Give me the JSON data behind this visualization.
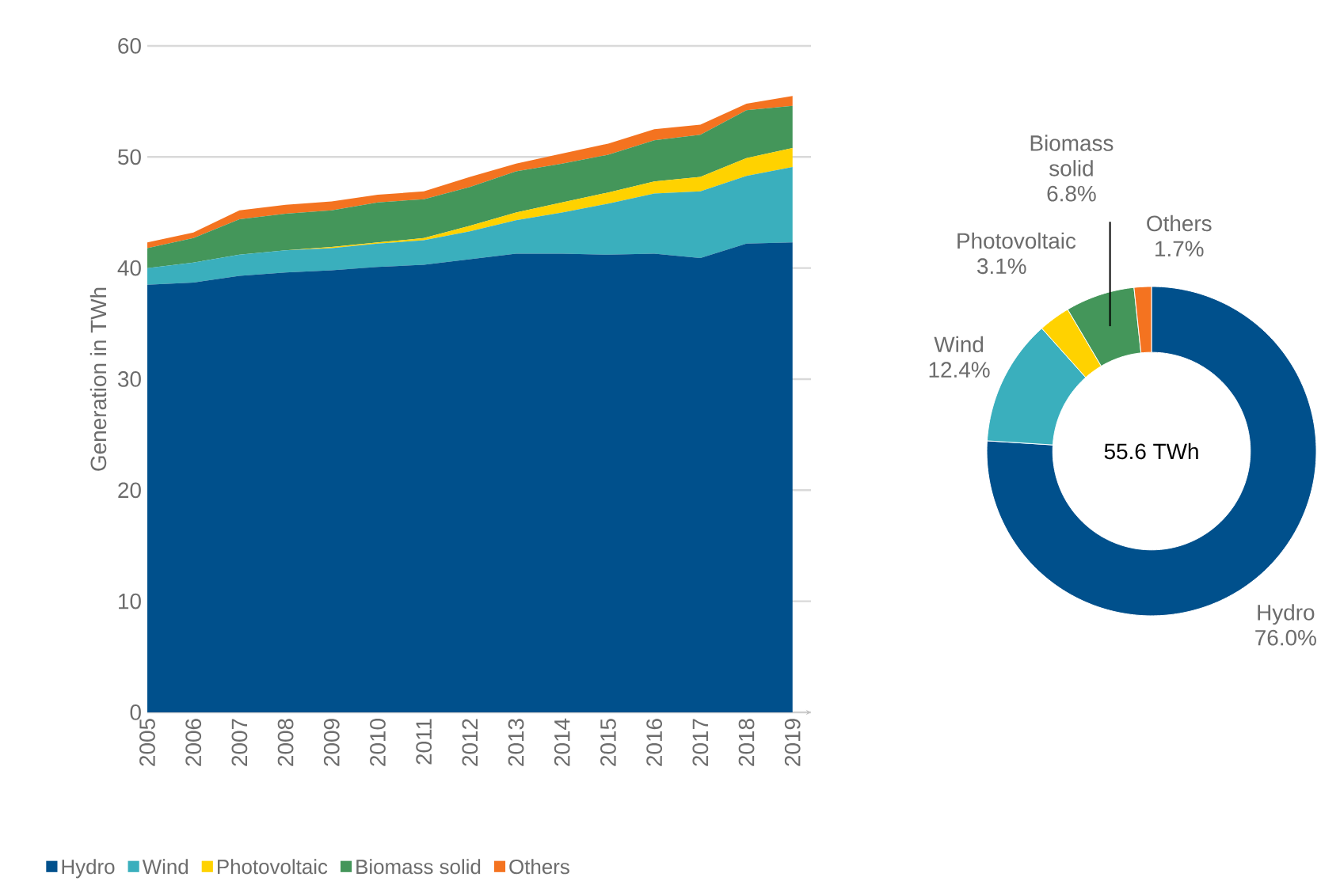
{
  "chart_data": [
    {
      "type": "area",
      "stacked": true,
      "ylabel": "Generation in TWh",
      "categories": [
        "2005",
        "2006",
        "2007",
        "2008",
        "2009",
        "2010",
        "2011",
        "2012",
        "2013",
        "2014",
        "2015",
        "2016",
        "2017",
        "2018",
        "2019"
      ],
      "ylim": [
        0,
        60
      ],
      "yticks": [
        0,
        10,
        20,
        30,
        40,
        50,
        60
      ],
      "grid": "y",
      "legend": "bottom",
      "series": [
        {
          "name": "Hydro",
          "color": "#00508c",
          "values": [
            38.5,
            38.7,
            39.3,
            39.6,
            39.8,
            40.1,
            40.3,
            40.8,
            41.3,
            41.3,
            41.2,
            41.3,
            40.9,
            42.2,
            42.3
          ]
        },
        {
          "name": "Wind",
          "color": "#3aafbd",
          "values": [
            1.5,
            1.8,
            1.9,
            2.0,
            2.0,
            2.1,
            2.2,
            2.5,
            3.0,
            3.7,
            4.6,
            5.4,
            6.0,
            6.1,
            6.8
          ]
        },
        {
          "name": "Photovoltaic",
          "color": "#ffd200",
          "values": [
            0,
            0,
            0,
            0,
            0.1,
            0.1,
            0.2,
            0.5,
            0.7,
            0.9,
            1.0,
            1.1,
            1.3,
            1.6,
            1.7
          ]
        },
        {
          "name": "Biomass solid",
          "color": "#44965a",
          "values": [
            1.8,
            2.2,
            3.2,
            3.3,
            3.3,
            3.6,
            3.5,
            3.5,
            3.7,
            3.5,
            3.4,
            3.7,
            3.8,
            4.3,
            3.8
          ]
        },
        {
          "name": "Others",
          "color": "#f47320",
          "values": [
            0.5,
            0.5,
            0.8,
            0.8,
            0.8,
            0.7,
            0.7,
            0.9,
            0.7,
            0.9,
            1.0,
            1.0,
            0.9,
            0.6,
            0.9
          ]
        }
      ]
    },
    {
      "type": "donut",
      "categories": [
        "Hydro",
        "Wind",
        "Photovoltaic",
        "Biomass solid",
        "Others"
      ],
      "values": [
        76.0,
        12.4,
        3.1,
        6.8,
        1.7
      ],
      "colors": [
        "#00508c",
        "#3aafbd",
        "#ffd200",
        "#44965a",
        "#f47320"
      ],
      "value_labels": [
        "76.0%",
        "12.4%",
        "3.1%",
        "6.8%",
        "1.7%"
      ],
      "annotations": [
        "55.6 TWh"
      ]
    }
  ]
}
